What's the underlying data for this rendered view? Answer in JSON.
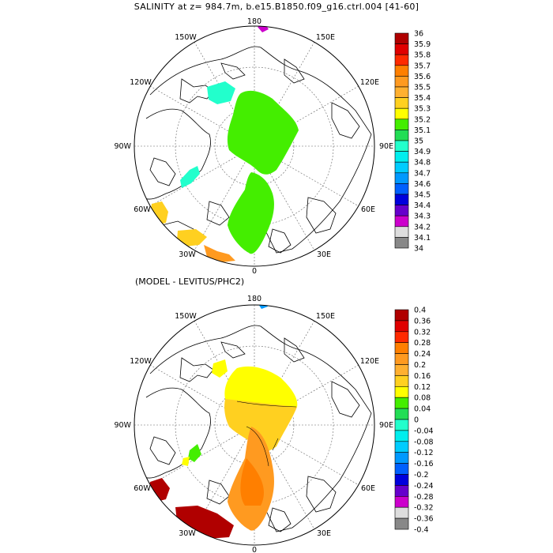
{
  "title": "SALINITY at z= 984.7m, b.e15.B1850.f09_g16.ctrl.004 [41-60]",
  "subtitle": "(MODEL - LEVITUS/PHC2)",
  "map_labels": {
    "top": "180",
    "bottom": "0",
    "left": "90W",
    "right": "90E",
    "nw2": "150W",
    "nw1": "120W",
    "ne2": "150E",
    "ne1": "120E",
    "sw1": "60W",
    "sw2": "30W",
    "se1": "60E",
    "se2": "30E"
  },
  "colorbar_top": {
    "labels": [
      "36",
      "35.9",
      "35.8",
      "35.7",
      "35.6",
      "35.5",
      "35.4",
      "35.3",
      "35.2",
      "35.1",
      "35",
      "34.9",
      "34.8",
      "34.7",
      "34.6",
      "34.5",
      "34.4",
      "34.3",
      "34.2",
      "34.1",
      "34"
    ],
    "colors": [
      "#b00000",
      "#e00000",
      "#ff2a00",
      "#ff7f00",
      "#ff9a20",
      "#ffb030",
      "#ffd020",
      "#ffff00",
      "#44ee00",
      "#22dd55",
      "#22ffcc",
      "#00eeee",
      "#00ccff",
      "#0099ff",
      "#0060ff",
      "#0000dd",
      "#6600cc",
      "#cc00cc",
      "#dddddd",
      "#888888"
    ]
  },
  "colorbar_bottom": {
    "labels": [
      "0.4",
      "0.36",
      "0.32",
      "0.28",
      "0.24",
      "0.2",
      "0.16",
      "0.12",
      "0.08",
      "0.04",
      "0",
      "-0.04",
      "-0.08",
      "-0.12",
      "-0.16",
      "-0.2",
      "-0.24",
      "-0.28",
      "-0.32",
      "-0.36",
      "-0.4"
    ],
    "colors": [
      "#b00000",
      "#e00000",
      "#ff2a00",
      "#ff7f00",
      "#ff9a20",
      "#ffb030",
      "#ffd020",
      "#ffff00",
      "#44ee00",
      "#22dd55",
      "#22ffcc",
      "#00eeee",
      "#00ccff",
      "#0099ff",
      "#0060ff",
      "#0000dd",
      "#6600cc",
      "#cc00cc",
      "#dddddd",
      "#888888"
    ]
  }
}
